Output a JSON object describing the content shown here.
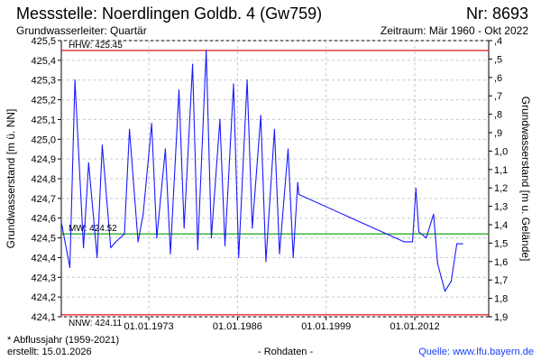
{
  "header": {
    "title": "Messstelle: Noerdlingen Goldb. 4 (Gw759)",
    "number": "Nr: 8693",
    "aquifer": "Grundwasserleiter: Quartär",
    "period": "Zeitraum: Mär 1960 - Okt 2022"
  },
  "footer": {
    "note": "* Abflussjahr (1959-2021)",
    "created": "erstellt:  15.01.2026",
    "raw": "- Rohdaten -",
    "source": "Quelle: www.lfu.bayern.de"
  },
  "colors": {
    "series": "#1a1aff",
    "hhw": "#e60000",
    "nnw": "#e60000",
    "mean": "#009a00",
    "grid": "#c8c8c8"
  },
  "chart_data": {
    "type": "line",
    "ylabel_left": "Grundwasserstand [m ü. NN]",
    "ylabel_right": "Grundwasserstand [m u. Gelände]",
    "ylim_left": [
      424.1,
      425.5
    ],
    "ylim_right": [
      1.9,
      0.4
    ],
    "yticks_left": [
      "425,5",
      "425,4",
      "425,3",
      "425,2",
      "425,1",
      "425,0",
      "424,9",
      "424,8",
      "424,7",
      "424,6",
      "424,5",
      "424,4",
      "424,3",
      "424,2",
      "424,1"
    ],
    "yticks_right": [
      ",4",
      ",5",
      ",6",
      ",7",
      ",8",
      ",9",
      "1,0",
      "1,1",
      "1,2",
      "1,3",
      "1,4",
      "1,5",
      "1,6",
      "1,7",
      "1,8",
      "1,9"
    ],
    "xlim": [
      "1960-03-01",
      "2022-10-31"
    ],
    "xticks": [
      "01.01.1973",
      "01.01.1986",
      "01.01.1999",
      "01.01.2012"
    ],
    "grid": true,
    "reference_lines": [
      {
        "name": "HHW",
        "label": "HHW: 425.45",
        "value": 425.45
      },
      {
        "name": "MW",
        "label": "MW: 424.52",
        "value": 424.52
      },
      {
        "name": "NNW",
        "label": "NNW: 424.11",
        "value": 424.11
      }
    ],
    "series": [
      {
        "x": [
          "1960-03",
          "1961-06",
          "1962-03",
          "1963-06",
          "1964-03",
          "1965-06",
          "1966-03",
          "1967-06",
          "1968-03",
          "1969-06",
          "1970-03",
          "1971-06",
          "1972-03",
          "1973-06",
          "1974-03",
          "1975-06",
          "1976-03",
          "1977-06",
          "1978-03",
          "1979-06",
          "1980-03",
          "1981-06",
          "1982-03",
          "1983-06",
          "1984-03",
          "1985-06",
          "1986-03",
          "1987-06",
          "1988-03",
          "1989-06",
          "1990-03",
          "1991-06",
          "1992-03",
          "1993-06",
          "1994-03",
          "1994-11",
          "1995-01",
          "2010-06",
          "2011-09",
          "2012-03",
          "2012-08",
          "2013-09",
          "2014-10",
          "2015-05",
          "2016-06",
          "2017-05",
          "2018-03",
          "2019-01"
        ],
        "y": [
          424.58,
          424.35,
          425.3,
          424.45,
          424.88,
          424.4,
          424.97,
          424.45,
          424.48,
          424.52,
          425.05,
          424.48,
          424.62,
          425.08,
          424.5,
          424.95,
          424.42,
          425.25,
          424.55,
          425.38,
          424.44,
          425.45,
          424.5,
          425.1,
          424.46,
          425.28,
          424.4,
          425.3,
          424.55,
          425.12,
          424.38,
          425.05,
          424.42,
          424.95,
          424.4,
          424.78,
          424.72,
          424.48,
          424.48,
          424.75,
          424.53,
          424.5,
          424.62,
          424.37,
          424.23,
          424.28,
          424.47,
          424.47
        ]
      }
    ]
  }
}
